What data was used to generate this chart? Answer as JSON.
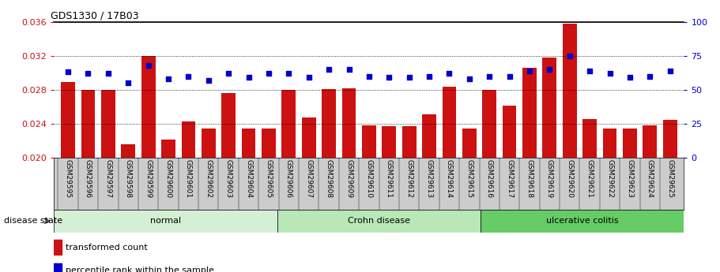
{
  "title": "GDS1330 / 17B03",
  "samples": [
    "GSM29595",
    "GSM29596",
    "GSM29597",
    "GSM29598",
    "GSM29599",
    "GSM29600",
    "GSM29601",
    "GSM29602",
    "GSM29603",
    "GSM29604",
    "GSM29605",
    "GSM29606",
    "GSM29607",
    "GSM29608",
    "GSM29609",
    "GSM29610",
    "GSM29611",
    "GSM29612",
    "GSM29613",
    "GSM29614",
    "GSM29615",
    "GSM29616",
    "GSM29617",
    "GSM29618",
    "GSM29619",
    "GSM29620",
    "GSM29621",
    "GSM29622",
    "GSM29623",
    "GSM29624",
    "GSM29625"
  ],
  "transformed_count": [
    0.02895,
    0.028,
    0.028,
    0.0216,
    0.032,
    0.0221,
    0.0243,
    0.0234,
    0.0276,
    0.0234,
    0.0234,
    0.028,
    0.0247,
    0.0281,
    0.0282,
    0.0238,
    0.0237,
    0.0237,
    0.0251,
    0.0284,
    0.0234,
    0.028,
    0.0261,
    0.0306,
    0.0318,
    0.0358,
    0.0246,
    0.0234,
    0.0234,
    0.0238,
    0.0245
  ],
  "percentile_rank": [
    63,
    62,
    62,
    55,
    68,
    58,
    60,
    57,
    62,
    59,
    62,
    62,
    59,
    65,
    65,
    60,
    59,
    59,
    60,
    62,
    58,
    60,
    60,
    64,
    65,
    75,
    64,
    62,
    59,
    60,
    64
  ],
  "groups": [
    {
      "label": "normal",
      "start": 0,
      "end": 10,
      "color": "#d4f0d4"
    },
    {
      "label": "Crohn disease",
      "start": 11,
      "end": 20,
      "color": "#b8e8b8"
    },
    {
      "label": "ulcerative colitis",
      "start": 21,
      "end": 30,
      "color": "#66cc66"
    }
  ],
  "ylim_left": [
    0.02,
    0.036
  ],
  "ylim_right": [
    0,
    100
  ],
  "yticks_left": [
    0.02,
    0.024,
    0.028,
    0.032,
    0.036
  ],
  "yticks_right": [
    0,
    25,
    50,
    75,
    100
  ],
  "bar_color": "#cc1111",
  "marker_color": "#0000cc",
  "left_axis_color": "#cc1111",
  "right_axis_color": "#0000cc",
  "ticklabel_bg": "#cccccc",
  "bar_baseline": 0.02
}
